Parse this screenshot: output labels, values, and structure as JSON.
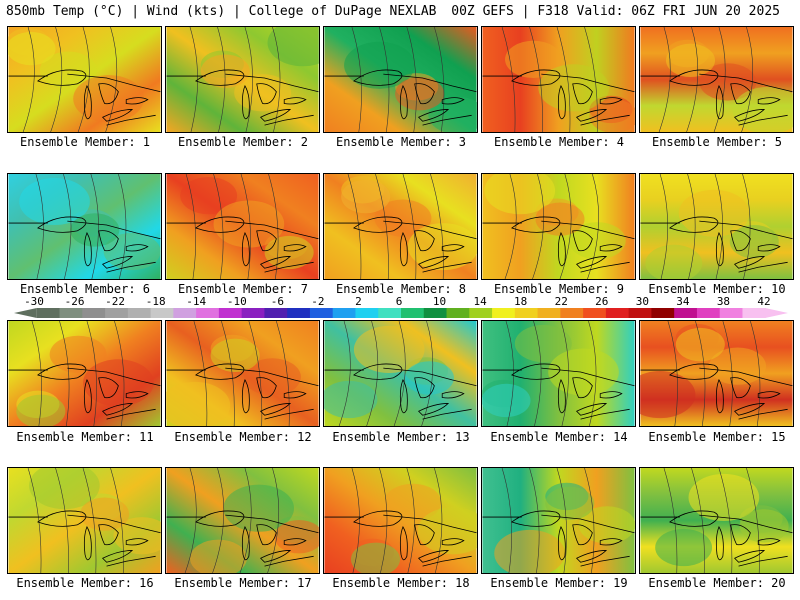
{
  "header": {
    "left": "850mb Temp (°C) | Wind (kts) | College of DuPage NEXLAB",
    "right": "00Z GEFS | F318 Valid: 06Z FRI JUN 20 2025"
  },
  "colorbar": {
    "labels": [
      "-30",
      "-26",
      "-22",
      "-18",
      "-14",
      "-10",
      "-6",
      "-2",
      "2",
      "6",
      "10",
      "14",
      "18",
      "22",
      "26",
      "30",
      "34",
      "38",
      "42"
    ],
    "colors": [
      "#5f6f5f",
      "#7f8f7f",
      "#8f8f8f",
      "#a0a0a0",
      "#b0b0b0",
      "#c8c8c8",
      "#d0a0e0",
      "#e070e0",
      "#c030d0",
      "#8a20c0",
      "#5020b0",
      "#2030c0",
      "#2060e0",
      "#20a0f0",
      "#20d0f0",
      "#40e0c0",
      "#20c070",
      "#109040",
      "#60b020",
      "#a0d020",
      "#f0f020",
      "#f0d020",
      "#f0b020",
      "#f08020",
      "#f05020",
      "#e02020",
      "#c01010",
      "#900000",
      "#c01090",
      "#e040c0",
      "#f080e0",
      "#f8c0f0"
    ]
  },
  "members": [
    {
      "caption": "Ensemble Member: 1",
      "palette": [
        "#f5a623",
        "#f0c020",
        "#d6dd1f",
        "#f07a20",
        "#e8e020"
      ]
    },
    {
      "caption": "Ensemble Member: 2",
      "palette": [
        "#c0d820",
        "#8ec830",
        "#f0c020",
        "#5fb43a",
        "#f5a623"
      ]
    },
    {
      "caption": "Ensemble Member: 3",
      "palette": [
        "#f08020",
        "#f0a020",
        "#20b060",
        "#10a050",
        "#e85a20"
      ]
    },
    {
      "caption": "Ensemble Member: 4",
      "palette": [
        "#f06020",
        "#e84020",
        "#f0a020",
        "#c0d020",
        "#f07a20"
      ]
    },
    {
      "caption": "Ensemble Member: 5",
      "palette": [
        "#f07020",
        "#f0a020",
        "#e05020",
        "#c0d830",
        "#f0c020"
      ]
    },
    {
      "caption": "Ensemble Member: 6",
      "palette": [
        "#30d0e0",
        "#40c0b0",
        "#60c070",
        "#20d8e8",
        "#30b060"
      ]
    },
    {
      "caption": "Ensemble Member: 7",
      "palette": [
        "#f06020",
        "#f08020",
        "#e84020",
        "#f0a020",
        "#d0d020"
      ]
    },
    {
      "caption": "Ensemble Member: 8",
      "palette": [
        "#f0a020",
        "#f0c020",
        "#f08020",
        "#e8e020",
        "#f0b030"
      ]
    },
    {
      "caption": "Ensemble Member: 9",
      "palette": [
        "#f0c020",
        "#f0a020",
        "#c0d820",
        "#e8e020",
        "#f08020"
      ]
    },
    {
      "caption": "Ensemble Member: 10",
      "palette": [
        "#f0e020",
        "#e8d020",
        "#b0d030",
        "#f0c020",
        "#80c040"
      ]
    },
    {
      "caption": "Ensemble Member: 11",
      "palette": [
        "#c0d820",
        "#e8e020",
        "#f08020",
        "#e04020",
        "#a0c830"
      ]
    },
    {
      "caption": "Ensemble Member: 12",
      "palette": [
        "#f08020",
        "#f0a020",
        "#e86020",
        "#f0c020",
        "#d0d020"
      ]
    },
    {
      "caption": "Ensemble Member: 13",
      "palette": [
        "#c0d820",
        "#80c040",
        "#40c0a0",
        "#f0c020",
        "#20c8d0"
      ]
    },
    {
      "caption": "Ensemble Member: 14",
      "palette": [
        "#40c080",
        "#20b070",
        "#80c040",
        "#c0d820",
        "#30d0c0"
      ]
    },
    {
      "caption": "Ensemble Member: 15",
      "palette": [
        "#f08020",
        "#e85020",
        "#f0a020",
        "#d03020",
        "#f0c020"
      ]
    },
    {
      "caption": "Ensemble Member: 16",
      "palette": [
        "#e8e020",
        "#c0d830",
        "#f0c020",
        "#a0c830",
        "#f0a020"
      ]
    },
    {
      "caption": "Ensemble Member: 17",
      "palette": [
        "#c0d820",
        "#80c040",
        "#f0a020",
        "#40b050",
        "#f06020"
      ]
    },
    {
      "caption": "Ensemble Member: 18",
      "palette": [
        "#e84020",
        "#f06020",
        "#f0a020",
        "#d0d020",
        "#80c040"
      ]
    },
    {
      "caption": "Ensemble Member: 19",
      "palette": [
        "#40c090",
        "#20b080",
        "#c0d820",
        "#f0a020",
        "#80c040"
      ]
    },
    {
      "caption": "Ensemble Member: 20",
      "palette": [
        "#c0d820",
        "#80c040",
        "#40b050",
        "#f0e020",
        "#a0c830"
      ]
    }
  ]
}
